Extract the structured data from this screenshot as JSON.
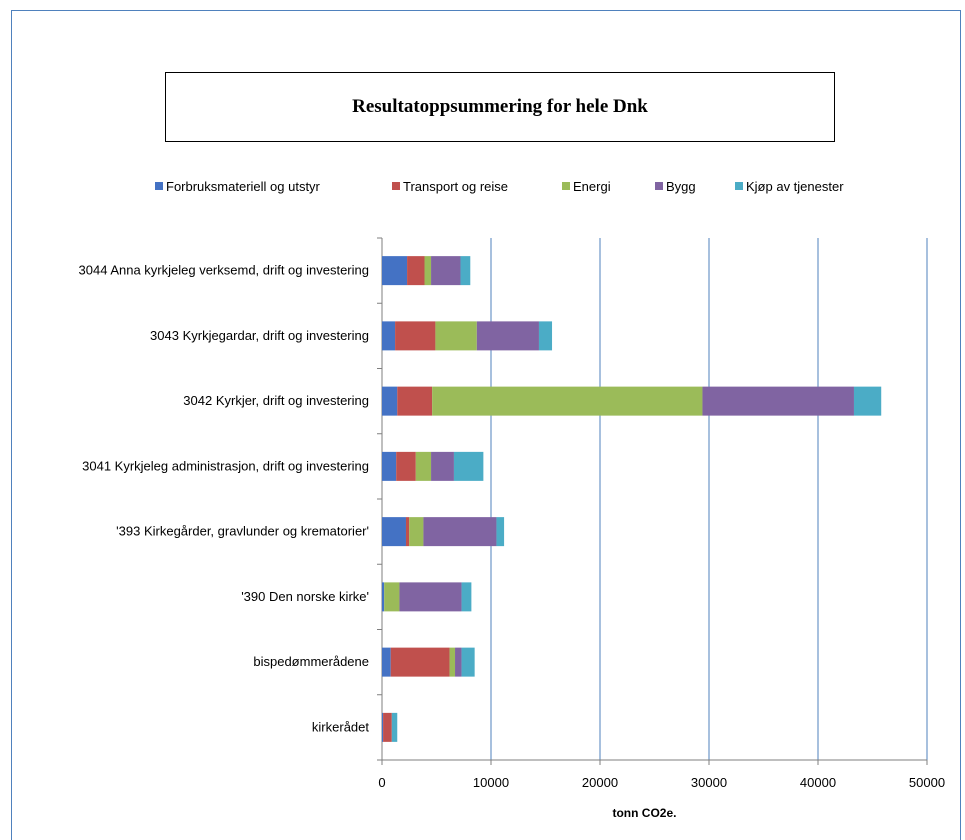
{
  "chart_data": {
    "type": "bar",
    "orientation": "horizontal",
    "stacked": true,
    "title": "Resultatoppsummering for hele Dnk",
    "xlabel": "tonn CO2e.",
    "ylabel": "",
    "xlim": [
      0,
      50000
    ],
    "x_ticks": [
      "0",
      "10000",
      "20000",
      "30000",
      "40000",
      "50000"
    ],
    "grid": "vertical",
    "legend_position": "top",
    "categories": [
      "3044 Anna kyrkjeleg verksemd, drift og investering",
      "3043 Kyrkjegardar, drift og investering",
      "3042 Kyrkjer, drift og investering",
      "3041 Kyrkjeleg administrasjon, drift og investering",
      "'393 Kirkegårder, gravlunder og krematorier'",
      "'390 Den norske kirke'",
      "bispedømmerådene",
      "kirkerådet"
    ],
    "series": [
      {
        "name": "Forbruksmateriell og utstyr",
        "color": "#4472c4",
        "values": [
          2300,
          1200,
          1400,
          1300,
          2200,
          200,
          800,
          100
        ]
      },
      {
        "name": "Transport og reise",
        "color": "#c0504d",
        "values": [
          1600,
          3700,
          3200,
          1800,
          300,
          0,
          5400,
          800
        ]
      },
      {
        "name": "Energi",
        "color": "#9bbb59",
        "values": [
          600,
          3800,
          24800,
          1400,
          1300,
          1400,
          500,
          0
        ]
      },
      {
        "name": "Bygg",
        "color": "#8064a2",
        "values": [
          2700,
          5700,
          13900,
          2100,
          6700,
          5700,
          600,
          0
        ]
      },
      {
        "name": "Kjøp av tjenester",
        "color": "#4bacc6",
        "values": [
          900,
          1200,
          2500,
          2700,
          700,
          900,
          1200,
          500
        ]
      }
    ]
  }
}
